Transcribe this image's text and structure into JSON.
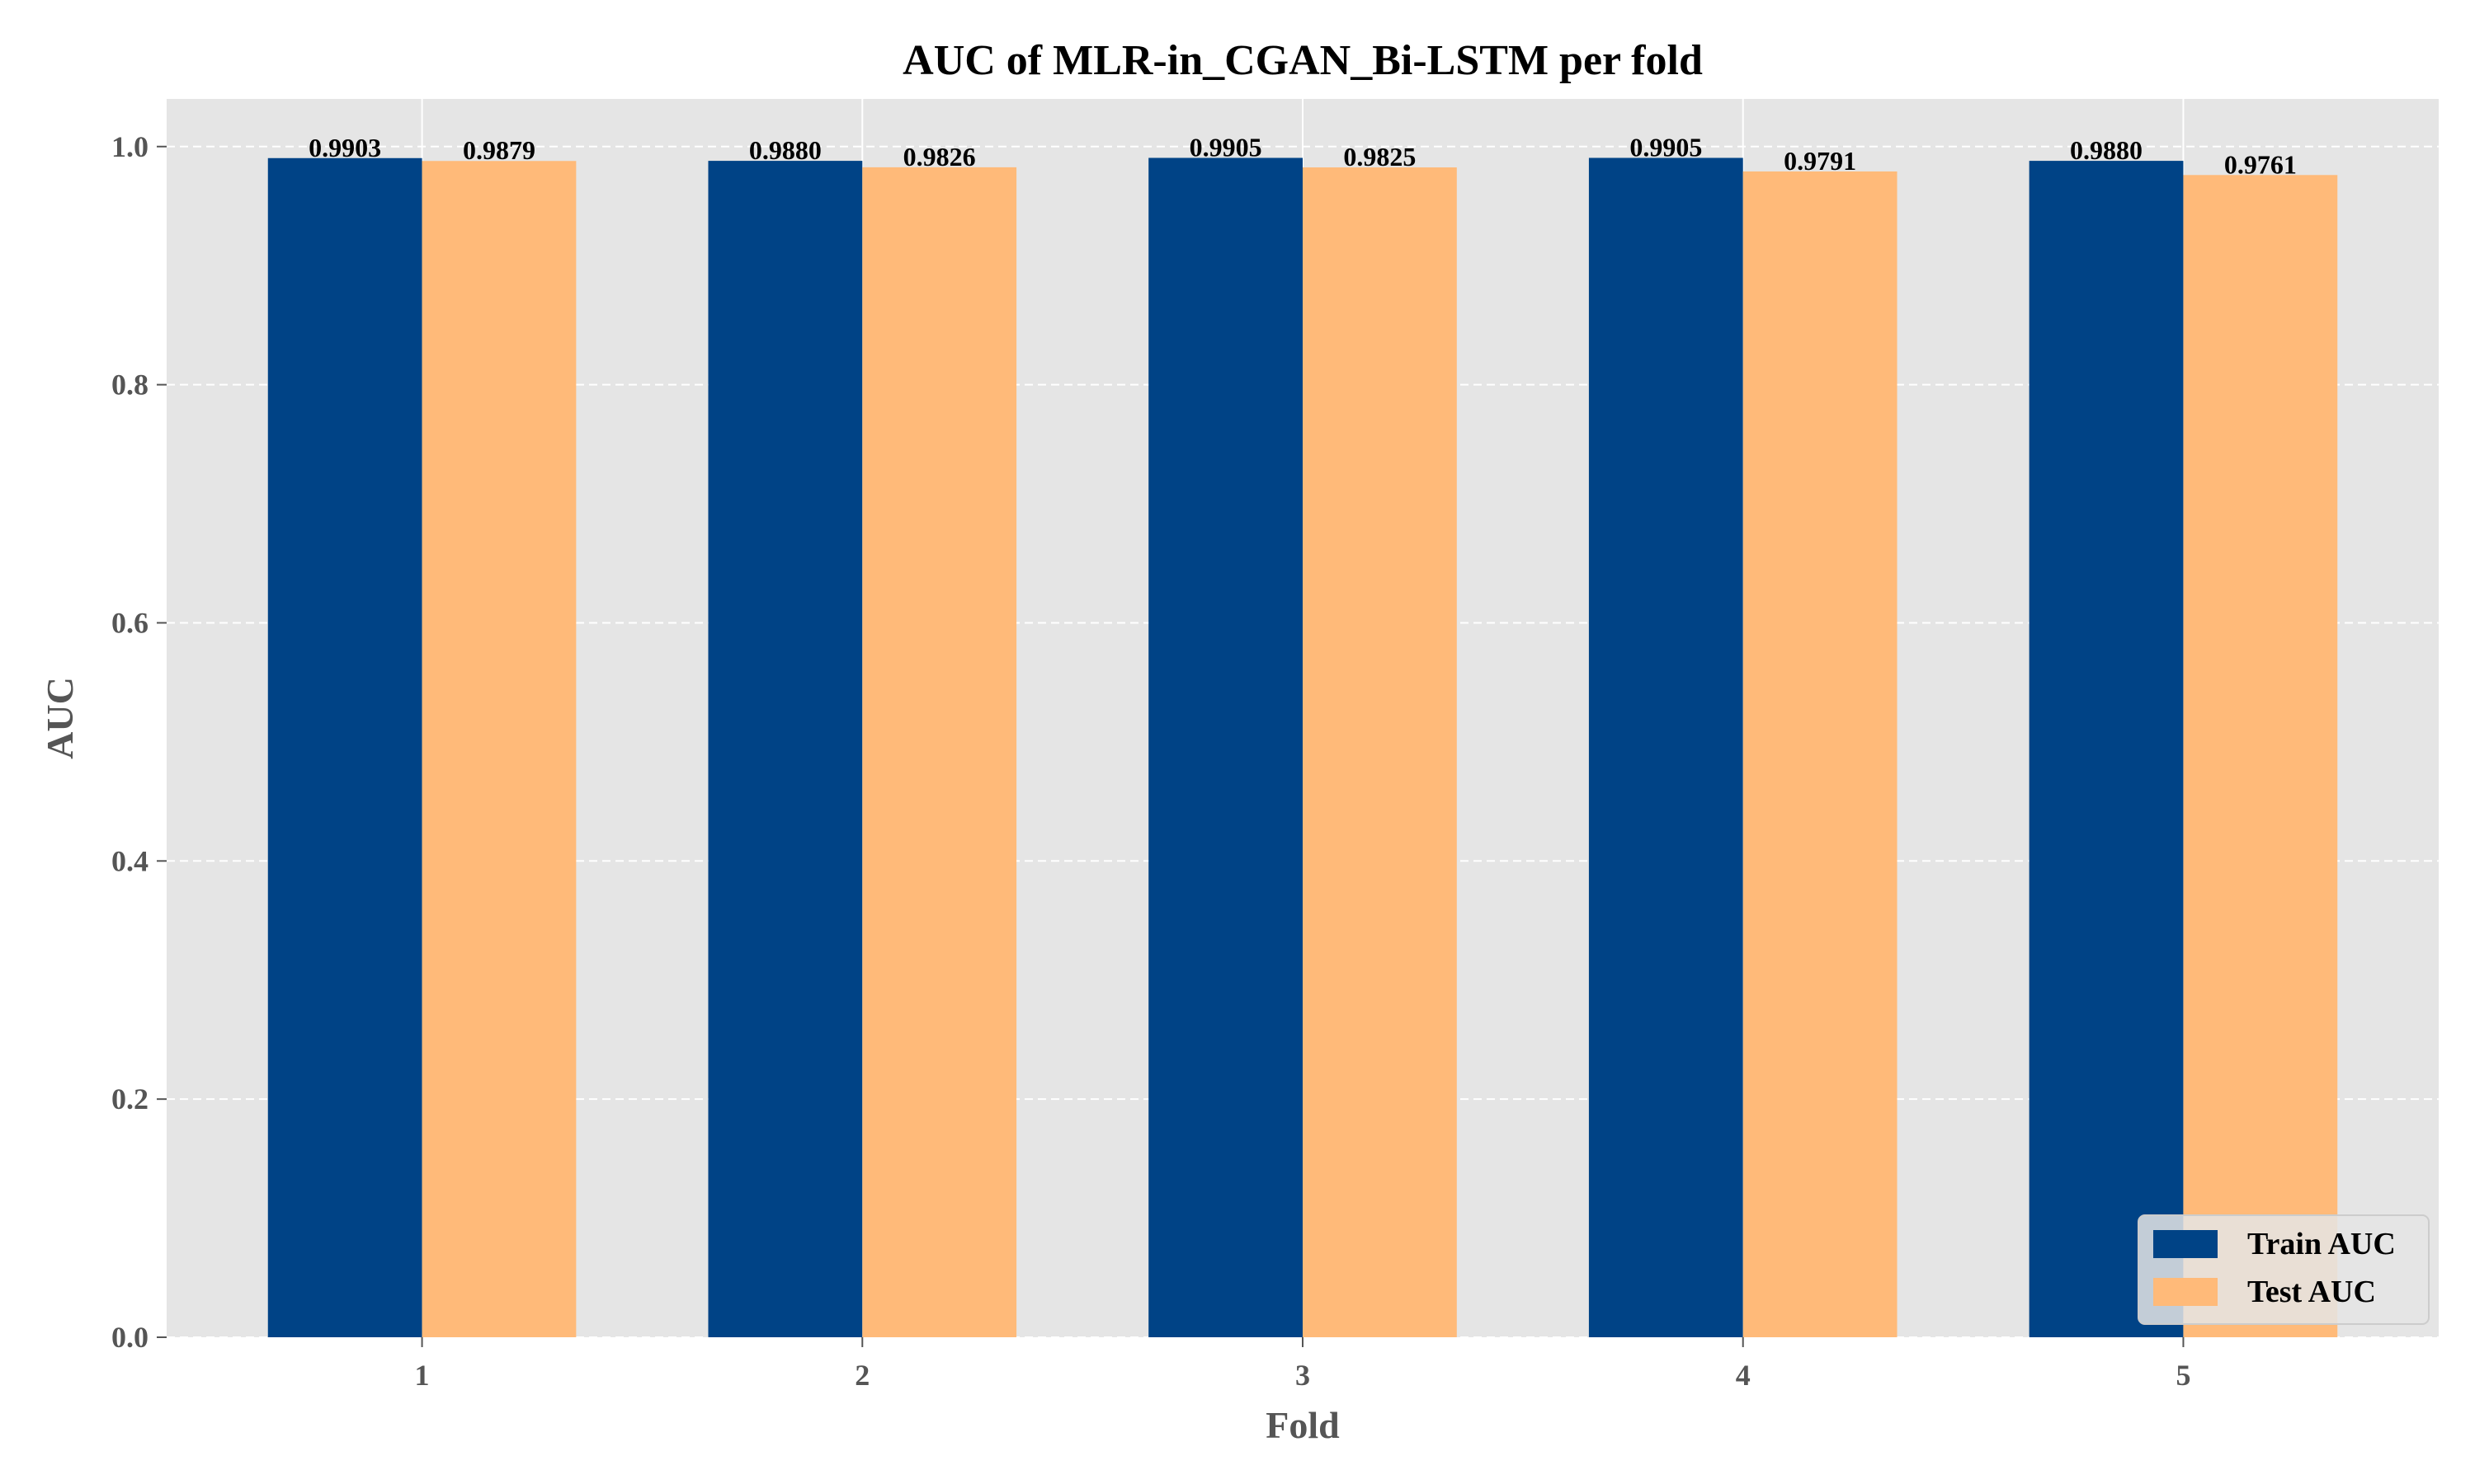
{
  "chart_data": {
    "type": "bar",
    "title": "AUC of MLR-in_CGAN_Bi-LSTM per fold",
    "xlabel": "Fold",
    "ylabel": "AUC",
    "categories": [
      "1",
      "2",
      "3",
      "4",
      "5"
    ],
    "series": [
      {
        "name": "Train AUC",
        "color": "#004386",
        "values": [
          0.9903,
          0.988,
          0.9905,
          0.9905,
          0.988
        ]
      },
      {
        "name": "Test AUC",
        "color": "#ffba79",
        "values": [
          0.9879,
          0.9826,
          0.9825,
          0.9791,
          0.9761
        ]
      }
    ],
    "value_labels": [
      [
        "0.9903",
        "0.9880",
        "0.9905",
        "0.9905",
        "0.9880"
      ],
      [
        "0.9879",
        "0.9826",
        "0.9825",
        "0.9791",
        "0.9761"
      ]
    ],
    "ylim": [
      0,
      1.04
    ],
    "yticks": [
      0.0,
      0.2,
      0.4,
      0.6,
      0.8,
      1.0
    ],
    "ytick_labels": [
      "0.0",
      "0.2",
      "0.4",
      "0.6",
      "0.8",
      "1.0"
    ],
    "grid": true,
    "background_color": "#e5e5e5",
    "legend_position": "lower-right"
  }
}
